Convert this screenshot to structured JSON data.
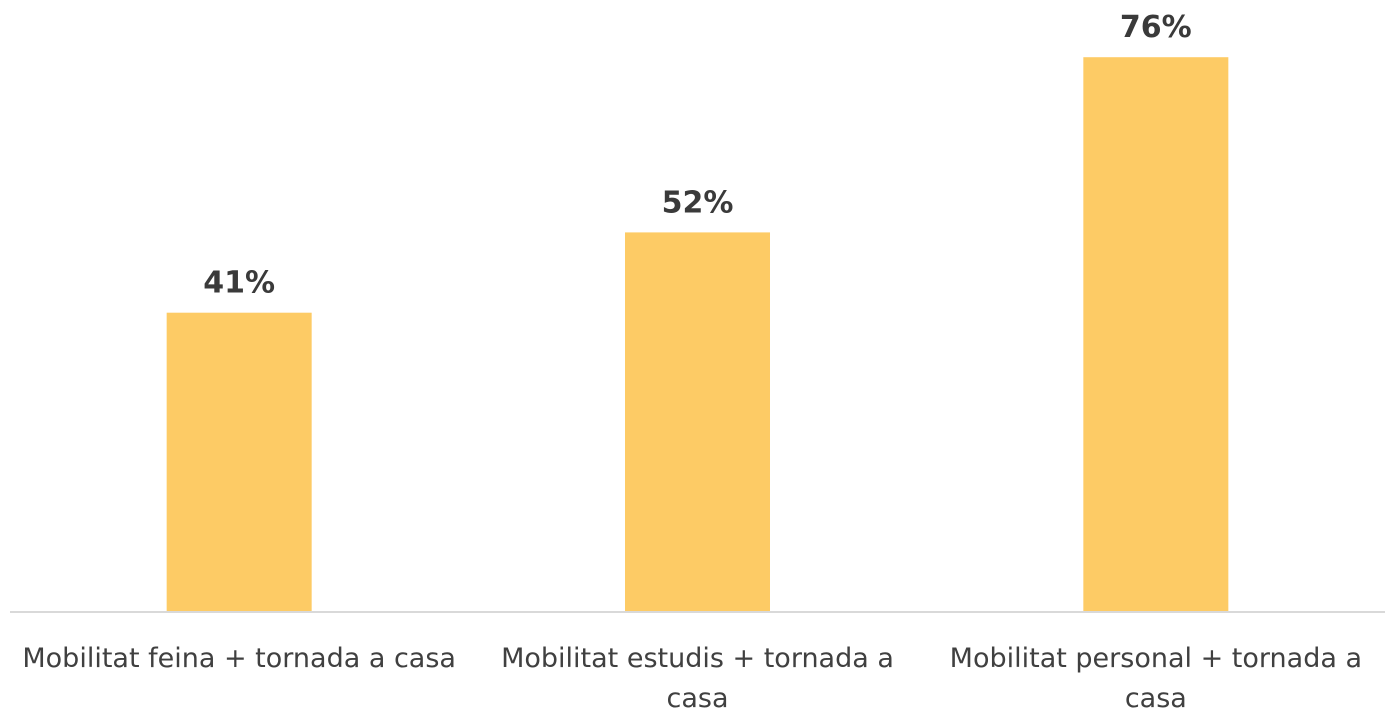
{
  "chart_data": {
    "type": "bar",
    "categories": [
      [
        "Mobilitat feina + tornada a casa"
      ],
      [
        "Mobilitat estudis + tornada a",
        "casa"
      ],
      [
        "Mobilitat personal + tornada a",
        "casa"
      ]
    ],
    "values": [
      41,
      52,
      76
    ],
    "data_labels": [
      "41%",
      "52%",
      "76%"
    ],
    "title": "",
    "xlabel": "",
    "ylabel": "",
    "ylim": [
      0,
      100
    ],
    "grid": false,
    "legend": "none",
    "bar_color": "#FDCB65",
    "axis_color": "#D9D9D9",
    "label_color": "#404040"
  }
}
